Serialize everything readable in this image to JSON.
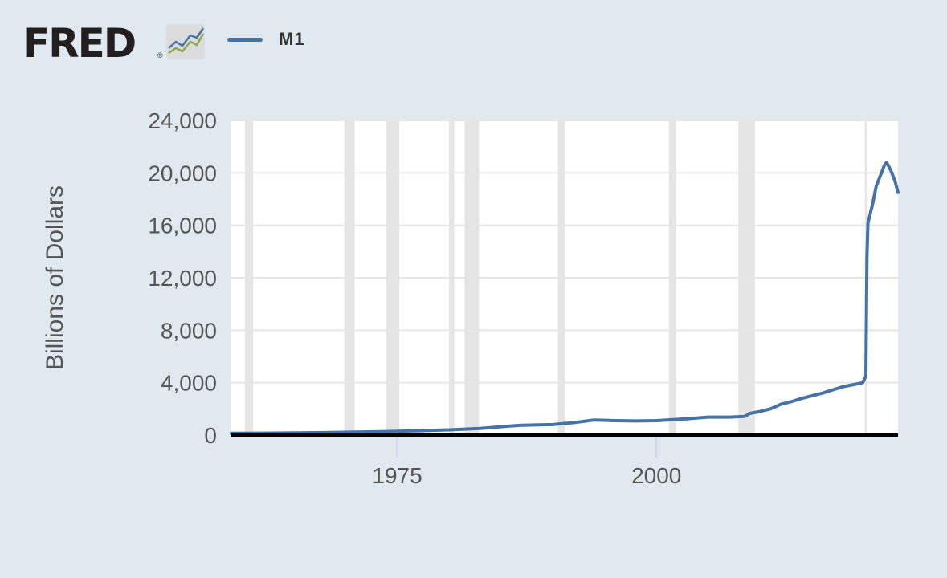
{
  "header": {
    "logo_text": "FRED",
    "logo_reg": "®",
    "logo_icon": "fred-line-chart-icon"
  },
  "colors": {
    "background": "#e1e9f0",
    "plot_background": "#ffffff",
    "series": "#4572a7",
    "recession": "#e5e5e5",
    "grid": "#e6e6e6",
    "axis": "#000000"
  },
  "chart_data": {
    "type": "line",
    "title": "",
    "xlabel": "",
    "ylabel": "Billions of Dollars",
    "xlim": [
      1959.0,
      2023.3
    ],
    "ylim": [
      0,
      24000
    ],
    "yticks": [
      0,
      4000,
      8000,
      12000,
      16000,
      20000,
      24000
    ],
    "ytick_labels": [
      "0",
      "4,000",
      "8,000",
      "12,000",
      "16,000",
      "20,000",
      "24,000"
    ],
    "xticks": [
      1975,
      2000
    ],
    "xtick_labels": [
      "1975",
      "2000"
    ],
    "grid": "horizontal",
    "legend": "top-left",
    "recessions": [
      [
        1960.3,
        1961.1
      ],
      [
        1969.9,
        1970.9
      ],
      [
        1973.9,
        1975.2
      ],
      [
        1980.0,
        1980.5
      ],
      [
        1981.5,
        1982.9
      ],
      [
        1990.5,
        1991.2
      ],
      [
        2001.2,
        2001.9
      ],
      [
        2007.9,
        2009.5
      ],
      [
        2020.1,
        2020.3
      ]
    ],
    "series": [
      {
        "name": "M1",
        "x": [
          1959.0,
          1962,
          1965,
          1968,
          1971,
          1974,
          1977,
          1980,
          1983,
          1986,
          1987,
          1990,
          1992,
          1994,
          1996,
          1998,
          2000,
          2001,
          2003,
          2005,
          2007,
          2008.5,
          2009,
          2010,
          2011,
          2012,
          2013,
          2014,
          2015,
          2016,
          2017,
          2018,
          2019,
          2019.9,
          2020.2,
          2020.3,
          2020.4,
          2020.6,
          2020.9,
          2021.2,
          2021.6,
          2022.0,
          2022.2,
          2022.6,
          2023.0,
          2023.3
        ],
        "values": [
          140,
          145,
          165,
          190,
          225,
          270,
          330,
          400,
          500,
          700,
          750,
          800,
          950,
          1150,
          1100,
          1080,
          1100,
          1150,
          1250,
          1370,
          1370,
          1420,
          1650,
          1800,
          2000,
          2350,
          2550,
          2800,
          3000,
          3200,
          3450,
          3700,
          3850,
          4000,
          4500,
          13500,
          16200,
          16800,
          17800,
          19000,
          19800,
          20600,
          20800,
          20200,
          19400,
          18500
        ]
      }
    ]
  }
}
